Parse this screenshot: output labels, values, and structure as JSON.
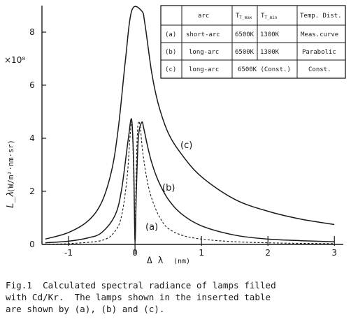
{
  "chart_data": {
    "type": "line",
    "x_label_symbol": "Δ λ",
    "x_label_unit": "(nm)",
    "y_label_symbol": "L_λ",
    "y_label_unit": "(W/m²·nm·sr)",
    "y_multiplier": "×10⁸",
    "xlim": [
      -1.4,
      3.05
    ],
    "ylim": [
      0,
      9
    ],
    "x_ticks": [
      "-1",
      "0",
      "1",
      "2",
      "3"
    ],
    "y_ticks": [
      "0",
      "2",
      "4",
      "6",
      "8"
    ],
    "grid": false,
    "series": [
      {
        "name": "(a)",
        "style": "dashed",
        "x": [
          -1.3,
          -1.0,
          -0.5,
          -0.3,
          -0.2,
          -0.12,
          -0.08,
          -0.05,
          -0.03,
          -0.01,
          0.0,
          0.01,
          0.03,
          0.05,
          0.08,
          0.12,
          0.2,
          0.3,
          0.4,
          0.5,
          0.7,
          1.0,
          1.5,
          2.0,
          2.5,
          3.0
        ],
        "y": [
          0.01,
          0.03,
          0.15,
          0.5,
          1.1,
          2.5,
          3.9,
          4.6,
          3.6,
          1.2,
          0.1,
          1.6,
          3.8,
          4.6,
          4.4,
          3.4,
          2.2,
          1.4,
          0.9,
          0.6,
          0.35,
          0.2,
          0.1,
          0.06,
          0.04,
          0.03
        ]
      },
      {
        "name": "(b)",
        "style": "solid",
        "x": [
          -1.35,
          -1.0,
          -0.7,
          -0.5,
          -0.3,
          -0.2,
          -0.1,
          -0.05,
          -0.02,
          0.0,
          0.02,
          0.05,
          0.1,
          0.13,
          0.18,
          0.25,
          0.35,
          0.5,
          0.7,
          1.0,
          1.5,
          2.0,
          2.5,
          3.0
        ],
        "y": [
          0.06,
          0.12,
          0.25,
          0.45,
          1.1,
          2.1,
          4.0,
          4.7,
          3.0,
          0.15,
          2.0,
          4.0,
          4.6,
          4.4,
          3.8,
          3.1,
          2.4,
          1.7,
          1.15,
          0.7,
          0.35,
          0.2,
          0.14,
          0.1
        ]
      },
      {
        "name": "(c)",
        "style": "solid",
        "x": [
          -1.35,
          -1.0,
          -0.7,
          -0.5,
          -0.35,
          -0.25,
          -0.15,
          -0.05,
          0.1,
          0.15,
          0.25,
          0.35,
          0.5,
          0.7,
          1.0,
          1.5,
          2.0,
          2.5,
          3.0
        ],
        "y": [
          0.2,
          0.45,
          0.9,
          1.6,
          2.8,
          4.4,
          6.8,
          8.8,
          8.8,
          8.3,
          6.5,
          5.3,
          4.2,
          3.4,
          2.55,
          1.7,
          1.25,
          0.95,
          0.75
        ]
      }
    ],
    "curve_labels": [
      "(a)",
      "(b)",
      "(c)"
    ]
  },
  "table": {
    "headers": [
      "",
      "arc",
      "T_max",
      "T_min",
      "Temp. Dist."
    ],
    "rows": [
      [
        "(a)",
        "short-arc",
        "6500K",
        "1300K",
        "Meas.curve"
      ],
      [
        "(b)",
        "long-arc",
        "6500K",
        "1300K",
        "Parabolic"
      ],
      [
        "(c)",
        "long-arc",
        "6500K (Const.)",
        "",
        "Const."
      ]
    ]
  },
  "caption": {
    "line1": "Fig.1  Calculated spectral radiance of lamps filled",
    "line2": "with Cd/Kr.  The lamps shown in the inserted table",
    "line3": "are shown by (a), (b) and (c)."
  }
}
